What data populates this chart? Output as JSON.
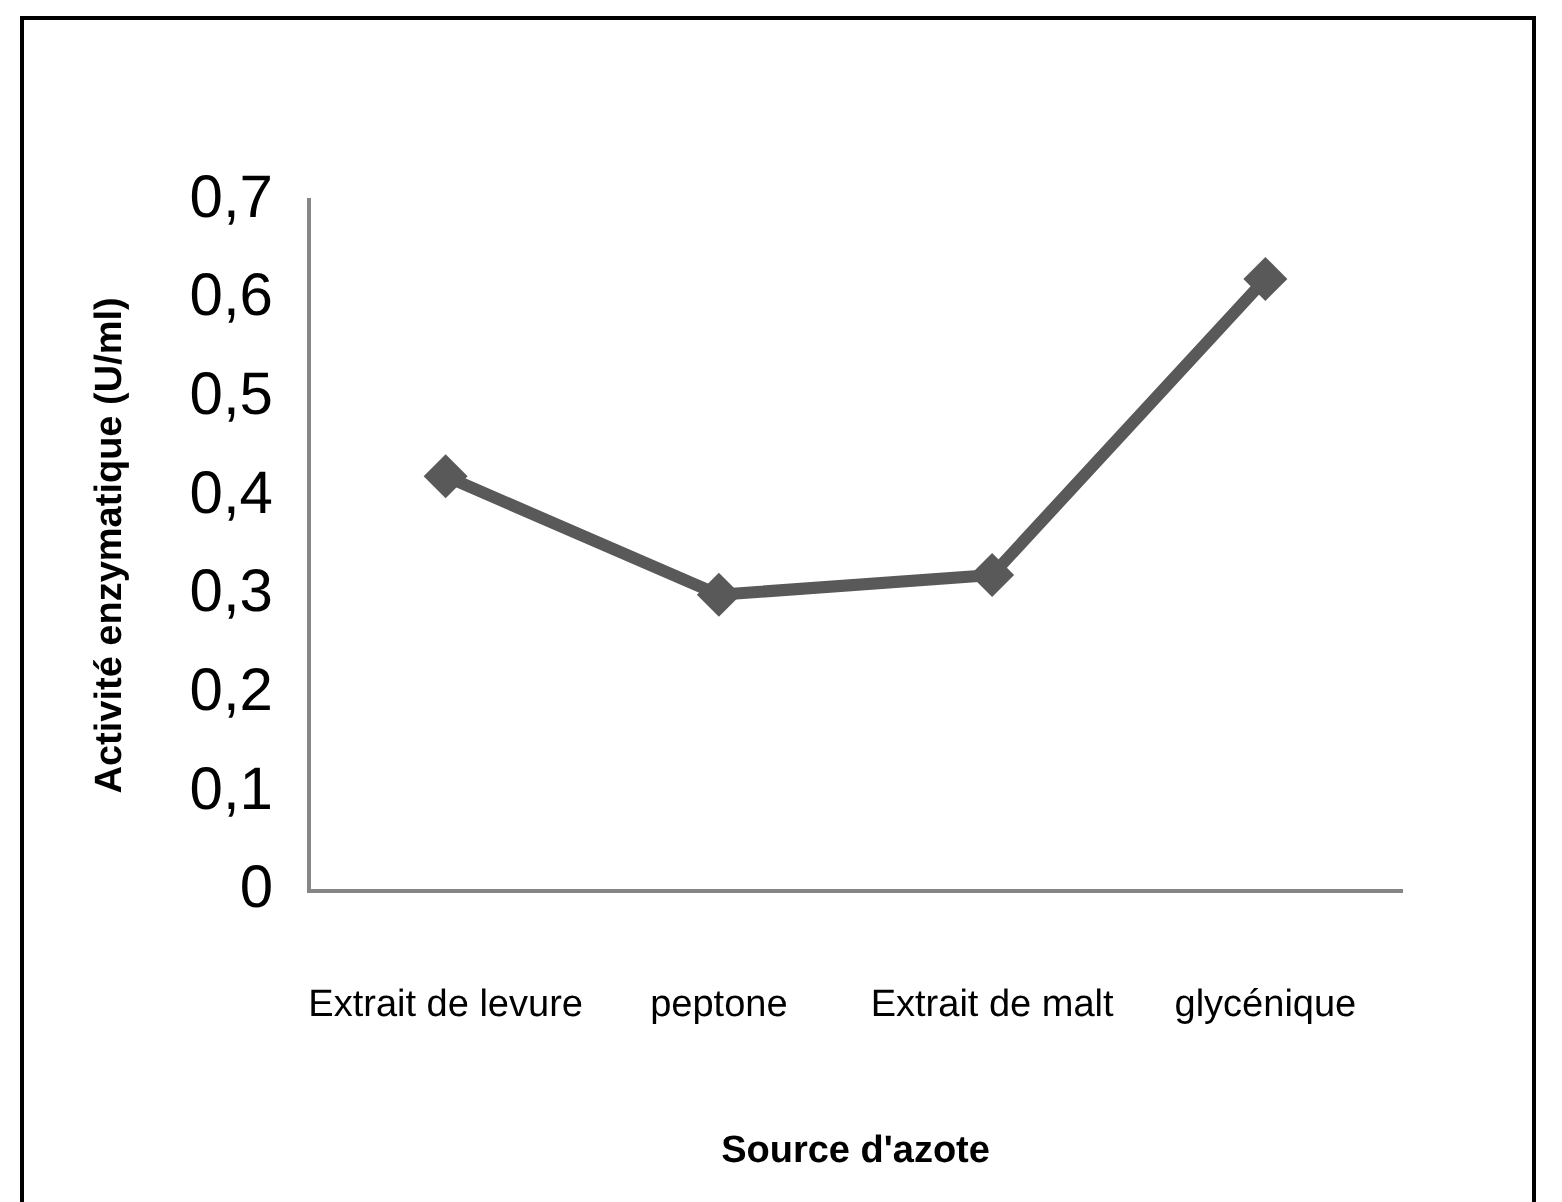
{
  "chart_data": {
    "type": "line",
    "xlabel": "Source d'azote",
    "ylabel": "Activité enzymatique (U/ml)",
    "categories": [
      "Extrait de levure",
      "peptone",
      "Extrait de malt",
      "glycénique"
    ],
    "series": [
      {
        "color": "#595959",
        "values": [
          0.42,
          0.3,
          0.32,
          0.62
        ]
      }
    ],
    "ylim": [
      0,
      0.7
    ],
    "yticks": [
      {
        "value": 0,
        "label": "0"
      },
      {
        "value": 0.1,
        "label": "0,1"
      },
      {
        "value": 0.2,
        "label": "0,2"
      },
      {
        "value": 0.3,
        "label": "0,3"
      },
      {
        "value": 0.4,
        "label": "0,4"
      },
      {
        "value": 0.5,
        "label": "0,5"
      },
      {
        "value": 0.6,
        "label": "0,6"
      },
      {
        "value": 0.7,
        "label": "0,7"
      }
    ],
    "grid": false,
    "legend": false,
    "marker": "diamond",
    "line_style": "solid"
  }
}
